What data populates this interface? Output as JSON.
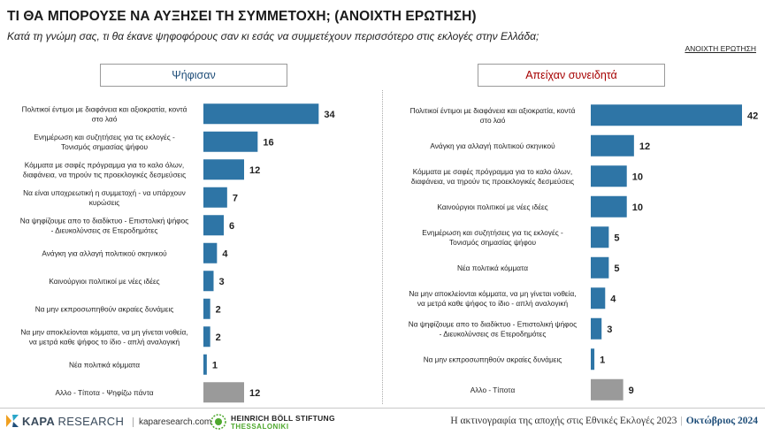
{
  "header": {
    "title": "ΤΙ ΘΑ ΜΠΟΡΟΥΣΕ ΝΑ ΑΥΞΗΣΕΙ ΤΗ ΣΥΜΜΕΤΟΧΗ; (ΑΝΟΙΧΤΗ ΕΡΩΤΗΣΗ)",
    "subtitle": "Κατά τη γνώμη σας, τι θα έκανε ψηφοφόρους σαν κι εσάς να συμμετέχουν περισσότερο στις εκλογές στην Ελλάδα;",
    "tag": "ΑΝΟΙΧΤΗ ΕΡΩΤΗΣΗ"
  },
  "colors": {
    "bar": "#2e75a6",
    "other_bar": "#9a9a9a",
    "left_title": "#1f4e79",
    "right_title": "#a60000"
  },
  "chart_data": [
    {
      "type": "bar",
      "orientation": "horizontal",
      "title": "Ψήφισαν",
      "categories": [
        [
          "Πολιτικοί έντιμοι με διαφάνεια και αξιοκρατία, κοντά",
          "στο λαό"
        ],
        [
          "Ενημέρωση και συζητήσεις για τις εκλογές -",
          "Τονισμός σημασίας ψήφου"
        ],
        [
          "Κόμματα με σαφές πρόγραμμα για το καλο όλων,",
          "διαφάνεια, να τηρούν τις προεκλογικές δεσμεύσεις"
        ],
        [
          "Να είναι υποχρεωτική η συμμετοχή - να υπάρχουν",
          "κυρώσεις"
        ],
        [
          "Να ψηφίζουμε απο το διαδίκτυο - Επιστολική ψήφος",
          "- Διευκολύνσεις σε Ετεροδημότες"
        ],
        [
          "Ανάγκη για αλλαγή πολιτικού σκηνικού"
        ],
        [
          "Καινούργιοι πολιτικοί με νέες ιδέες"
        ],
        [
          "Να μην εκπροσωπηθούν ακραίες δυνάμεις"
        ],
        [
          "Να μην αποκλείονται κόμματα, να μη γίνεται νοθεία,",
          "να μετρά καθε ψήφος το ίδιο - απλή αναλογική"
        ],
        [
          "Νέα πολιτικά κόμματα"
        ],
        [
          "Αλλο - Τίποτα - Ψηφίζω πάντα"
        ]
      ],
      "values": [
        34,
        16,
        12,
        7,
        6,
        4,
        3,
        2,
        2,
        1,
        12
      ],
      "value_labels": [
        "34",
        "16",
        "12",
        "7",
        "6",
        "4",
        "3",
        "2",
        "2",
        "1",
        "12"
      ],
      "other_flags": [
        false,
        false,
        false,
        false,
        false,
        false,
        false,
        false,
        false,
        false,
        true
      ],
      "xlim": [
        0,
        42
      ]
    },
    {
      "type": "bar",
      "orientation": "horizontal",
      "title": "Απείχαν συνειδητά",
      "categories": [
        [
          "Πολιτικοί έντιμοι με διαφάνεια και αξιοκρατία, κοντά",
          "στο λαό"
        ],
        [
          "Ανάγκη για αλλαγή πολιτικού σκηνικού"
        ],
        [
          "Κόμματα με σαφές πρόγραμμα για το καλο όλων,",
          "διαφάνεια, να τηρούν τις προεκλογικές δεσμεύσεις"
        ],
        [
          "Καινούργιοι πολιτικοί με νέες ιδέες"
        ],
        [
          "Ενημέρωση και συζητήσεις για τις εκλογές -",
          "Τονισμός σημασίας ψήφου"
        ],
        [
          "Νέα πολιτικά κόμματα"
        ],
        [
          "Να μην αποκλείονται κόμματα, να μη γίνεται νοθεία,",
          "να μετρά καθε ψήφος το ίδιο - απλή αναλογική"
        ],
        [
          "Να ψηφίζουμε απο το διαδίκτυο - Επιστολική ψήφος",
          "- Διευκολύνσεις σε Ετεροδημότες"
        ],
        [
          "Να μην εκπροσωπηθούν ακραίες δυνάμεις"
        ],
        [
          "Αλλο - Τίποτα"
        ]
      ],
      "values": [
        42,
        12,
        10,
        10,
        5,
        5,
        4,
        3,
        1,
        9
      ],
      "value_labels": [
        "42",
        "12",
        "10",
        "10",
        "5",
        "5",
        "4",
        "3",
        "1",
        "9"
      ],
      "other_flags": [
        false,
        false,
        false,
        false,
        false,
        false,
        false,
        false,
        false,
        true
      ],
      "xlim": [
        0,
        42
      ]
    }
  ],
  "footer": {
    "brand": "KAPA",
    "brand_suffix": "RESEARCH",
    "site": "kaparesearch.com",
    "partner_name": "HEINRICH BÖLL STIFTUNG",
    "partner_city": "THESSALONIKI",
    "report": "Η ακτινογραφία της αποχής στις Εθνικές Εκλογές 2023",
    "separator": "|",
    "date": "Οκτώβριος 2024"
  }
}
